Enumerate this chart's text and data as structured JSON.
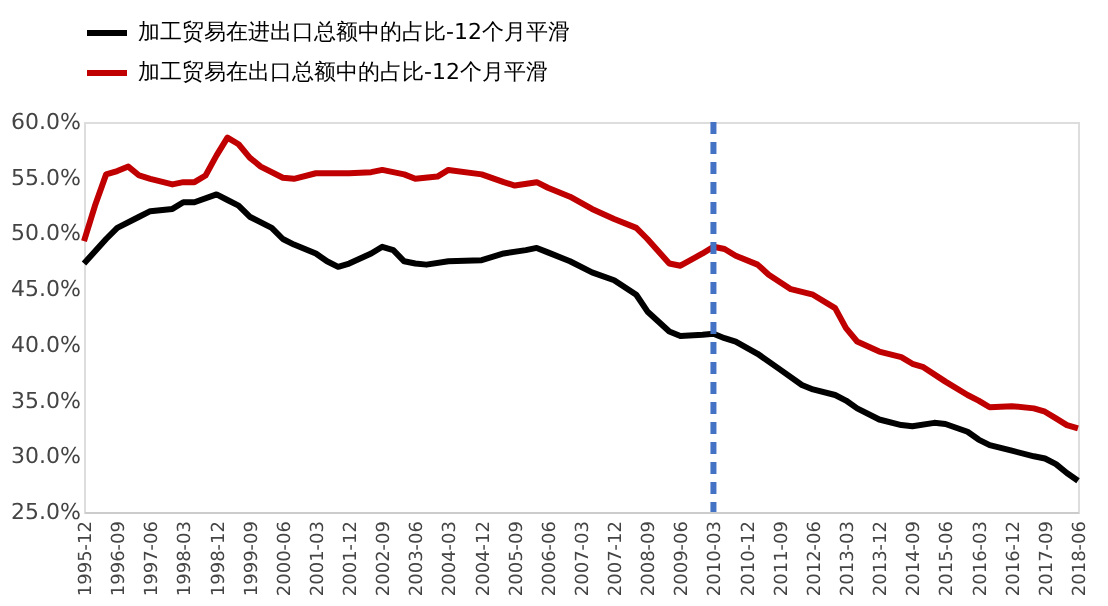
{
  "chart_data": {
    "type": "line",
    "legend": "top",
    "grid": false,
    "line_style": "solid",
    "marker": "none",
    "xlim": [
      "1995-12",
      "2018-06"
    ],
    "xticks": [
      "1995-12",
      "1996-09",
      "1997-06",
      "1998-03",
      "1998-12",
      "1999-09",
      "2000-06",
      "2001-03",
      "2001-12",
      "2002-09",
      "2003-06",
      "2004-03",
      "2004-12",
      "2005-09",
      "2006-06",
      "2007-03",
      "2007-12",
      "2008-09",
      "2009-06",
      "2010-03",
      "2010-12",
      "2011-09",
      "2012-06",
      "2013-03",
      "2013-12",
      "2014-09",
      "2015-06",
      "2016-03",
      "2016-12",
      "2017-09",
      "2018-06"
    ],
    "ylim": [
      25,
      60
    ],
    "yticks": [
      {
        "value": 25,
        "label": "25.0%"
      },
      {
        "value": 30,
        "label": "30.0%"
      },
      {
        "value": 35,
        "label": "35.0%"
      },
      {
        "value": 40,
        "label": "40.0%"
      },
      {
        "value": 45,
        "label": "45.0%"
      },
      {
        "value": 50,
        "label": "50.0%"
      },
      {
        "value": 55,
        "label": "55.0%"
      },
      {
        "value": 60,
        "label": "60.0%"
      }
    ],
    "ref_lines": [
      {
        "axis": "x",
        "value": "2010-03",
        "color": "#4472c4",
        "line_style": "dashed"
      }
    ],
    "series": [
      {
        "name": "加工贸易在进出口总额中的占比-12个月平滑",
        "color": "#000000",
        "x": [
          "1995-12",
          "1996-06",
          "1996-09",
          "1997-03",
          "1997-06",
          "1997-12",
          "1998-03",
          "1998-06",
          "1998-12",
          "1999-03",
          "1999-06",
          "1999-09",
          "2000-03",
          "2000-06",
          "2000-09",
          "2001-03",
          "2001-06",
          "2001-09",
          "2001-12",
          "2002-06",
          "2002-09",
          "2002-12",
          "2003-03",
          "2003-06",
          "2003-09",
          "2004-03",
          "2004-12",
          "2005-06",
          "2005-12",
          "2006-03",
          "2006-06",
          "2006-12",
          "2007-06",
          "2007-12",
          "2008-06",
          "2008-09",
          "2009-03",
          "2009-06",
          "2009-12",
          "2010-03",
          "2010-06",
          "2010-09",
          "2011-03",
          "2011-09",
          "2012-03",
          "2012-06",
          "2012-12",
          "2013-03",
          "2013-06",
          "2013-12",
          "2014-06",
          "2014-09",
          "2015-03",
          "2015-06",
          "2015-12",
          "2016-03",
          "2016-06",
          "2016-12",
          "2017-06",
          "2017-09",
          "2017-12",
          "2018-03",
          "2018-06"
        ],
        "values": [
          47.3,
          49.5,
          50.5,
          51.5,
          52,
          52.2,
          52.8,
          52.8,
          53.5,
          53,
          52.5,
          51.5,
          50.5,
          49.5,
          49,
          48.2,
          47.5,
          47,
          47.3,
          48.2,
          48.8,
          48.5,
          47.5,
          47.3,
          47.2,
          47.5,
          47.6,
          48.2,
          48.5,
          48.7,
          48.3,
          47.5,
          46.5,
          45.8,
          44.5,
          43,
          41.2,
          40.8,
          40.9,
          41,
          40.6,
          40.3,
          39.2,
          37.8,
          36.4,
          36,
          35.5,
          35,
          34.3,
          33.3,
          32.8,
          32.7,
          33,
          32.9,
          32.2,
          31.5,
          31,
          30.5,
          30,
          29.8,
          29.3,
          28.5,
          27.8
        ]
      },
      {
        "name": "加工贸易在出口总额中的占比-12个月平滑",
        "color": "#c00000",
        "x": [
          "1995-12",
          "1996-03",
          "1996-06",
          "1996-09",
          "1996-12",
          "1997-03",
          "1997-06",
          "1997-12",
          "1998-03",
          "1998-06",
          "1998-09",
          "1998-12",
          "1999-03",
          "1999-06",
          "1999-09",
          "1999-12",
          "2000-06",
          "2000-09",
          "2001-03",
          "2001-12",
          "2002-06",
          "2002-09",
          "2003-03",
          "2003-06",
          "2003-12",
          "2004-03",
          "2004-12",
          "2005-06",
          "2005-09",
          "2006-03",
          "2006-06",
          "2006-12",
          "2007-06",
          "2007-12",
          "2008-06",
          "2008-09",
          "2009-03",
          "2009-06",
          "2009-12",
          "2010-03",
          "2010-06",
          "2010-09",
          "2011-03",
          "2011-06",
          "2011-12",
          "2012-06",
          "2012-12",
          "2013-03",
          "2013-06",
          "2013-12",
          "2014-06",
          "2014-09",
          "2014-12",
          "2015-06",
          "2015-12",
          "2016-03",
          "2016-06",
          "2016-12",
          "2017-06",
          "2017-09",
          "2017-12",
          "2018-03",
          "2018-06"
        ],
        "values": [
          49.3,
          52.5,
          55.3,
          55.6,
          56,
          55.2,
          54.9,
          54.4,
          54.6,
          54.6,
          55.2,
          57,
          58.6,
          58,
          56.8,
          56,
          55,
          54.9,
          55.4,
          55.4,
          55.5,
          55.7,
          55.3,
          54.9,
          55.1,
          55.7,
          55.3,
          54.6,
          54.3,
          54.6,
          54.1,
          53.3,
          52.2,
          51.3,
          50.5,
          49.5,
          47.3,
          47.1,
          48.2,
          48.8,
          48.6,
          48,
          47.2,
          46.3,
          45,
          44.5,
          43.3,
          41.5,
          40.3,
          39.4,
          38.9,
          38.3,
          38,
          36.7,
          35.5,
          35,
          34.4,
          34.5,
          34.3,
          34,
          33.4,
          32.8,
          32.5
        ]
      }
    ]
  }
}
